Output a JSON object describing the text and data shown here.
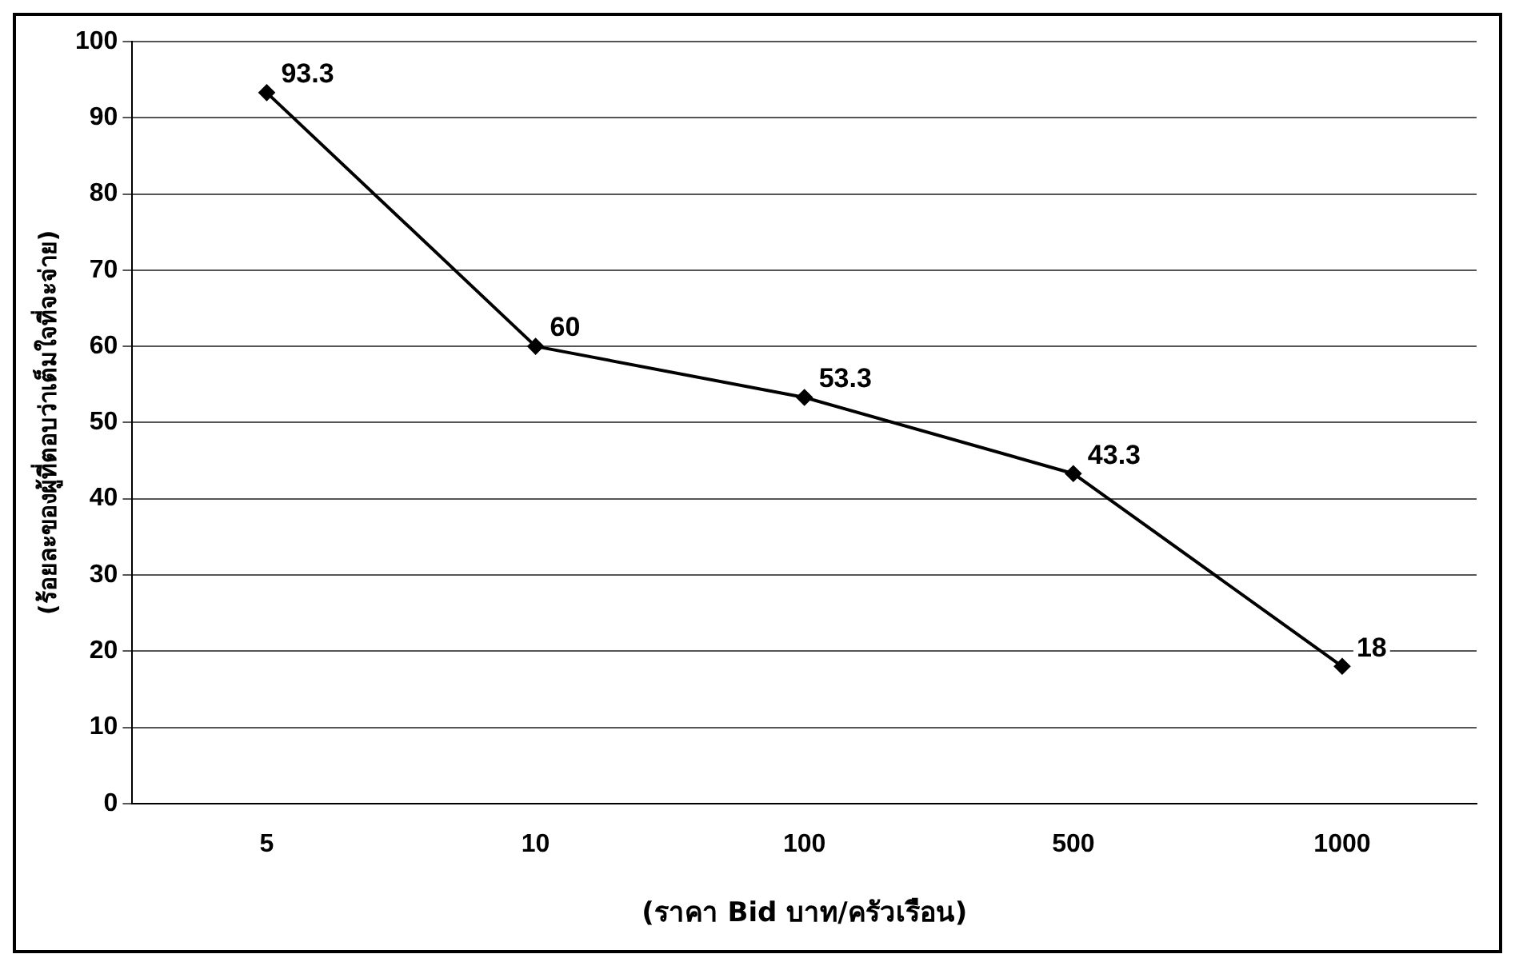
{
  "chart_data": {
    "type": "line",
    "xlabel": "(ราคา Bid บาท/ครัวเรือน)",
    "ylabel": "(ร้อยละของผู้ที่ตอบว่าเต็มใจที่จะจ่าย)",
    "categories": [
      "5",
      "10",
      "100",
      "500",
      "1000"
    ],
    "series": [
      {
        "color": "#000000",
        "values": [
          93.3,
          60,
          53.3,
          43.3,
          18
        ]
      }
    ],
    "ylim": [
      0,
      100
    ],
    "yticks": [
      0,
      10,
      20,
      30,
      40,
      50,
      60,
      70,
      80,
      90,
      100
    ],
    "grid": "y",
    "marker": "diamond",
    "data_labels": true,
    "legend": false
  }
}
